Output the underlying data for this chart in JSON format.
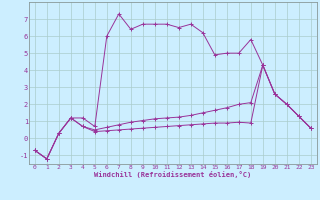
{
  "xlabel": "Windchill (Refroidissement éolien,°C)",
  "background_color": "#cceeff",
  "grid_color": "#aacccc",
  "line_color": "#993399",
  "xlim": [
    -0.5,
    23.5
  ],
  "ylim": [
    -1.5,
    8.0
  ],
  "yticks": [
    -1,
    0,
    1,
    2,
    3,
    4,
    5,
    6,
    7
  ],
  "xticks": [
    0,
    1,
    2,
    3,
    4,
    5,
    6,
    7,
    8,
    9,
    10,
    11,
    12,
    13,
    14,
    15,
    16,
    17,
    18,
    19,
    20,
    21,
    22,
    23
  ],
  "line1_x": [
    0,
    1,
    2,
    3,
    4,
    5,
    6,
    7,
    8,
    9,
    10,
    11,
    12,
    13,
    14,
    15,
    16,
    17,
    18,
    19,
    20,
    21,
    22,
    23
  ],
  "line1_y": [
    -0.7,
    -1.2,
    0.3,
    1.2,
    1.2,
    0.7,
    6.0,
    7.3,
    6.4,
    6.7,
    6.7,
    6.7,
    6.5,
    6.7,
    6.2,
    4.9,
    5.0,
    5.0,
    5.8,
    4.3,
    2.6,
    2.0,
    1.3,
    0.6
  ],
  "line2_x": [
    0,
    1,
    2,
    3,
    4,
    5,
    6,
    7,
    8,
    9,
    10,
    11,
    12,
    13,
    14,
    15,
    16,
    17,
    18,
    19,
    20,
    21,
    22,
    23
  ],
  "line2_y": [
    -0.7,
    -1.2,
    0.3,
    1.2,
    0.7,
    0.5,
    0.65,
    0.8,
    0.95,
    1.05,
    1.15,
    1.2,
    1.25,
    1.35,
    1.5,
    1.65,
    1.8,
    2.0,
    2.1,
    4.3,
    2.6,
    2.0,
    1.3,
    0.6
  ],
  "line3_x": [
    0,
    1,
    2,
    3,
    4,
    5,
    6,
    7,
    8,
    9,
    10,
    11,
    12,
    13,
    14,
    15,
    16,
    17,
    18,
    19,
    20,
    21,
    22,
    23
  ],
  "line3_y": [
    -0.7,
    -1.2,
    0.3,
    1.2,
    0.7,
    0.4,
    0.45,
    0.5,
    0.55,
    0.6,
    0.65,
    0.7,
    0.75,
    0.8,
    0.85,
    0.9,
    0.9,
    0.95,
    0.9,
    4.3,
    2.6,
    2.0,
    1.3,
    0.6
  ],
  "xlabel_fontsize": 5.0,
  "tick_fontsize": 4.5,
  "linewidth": 0.7,
  "markersize": 2.5
}
